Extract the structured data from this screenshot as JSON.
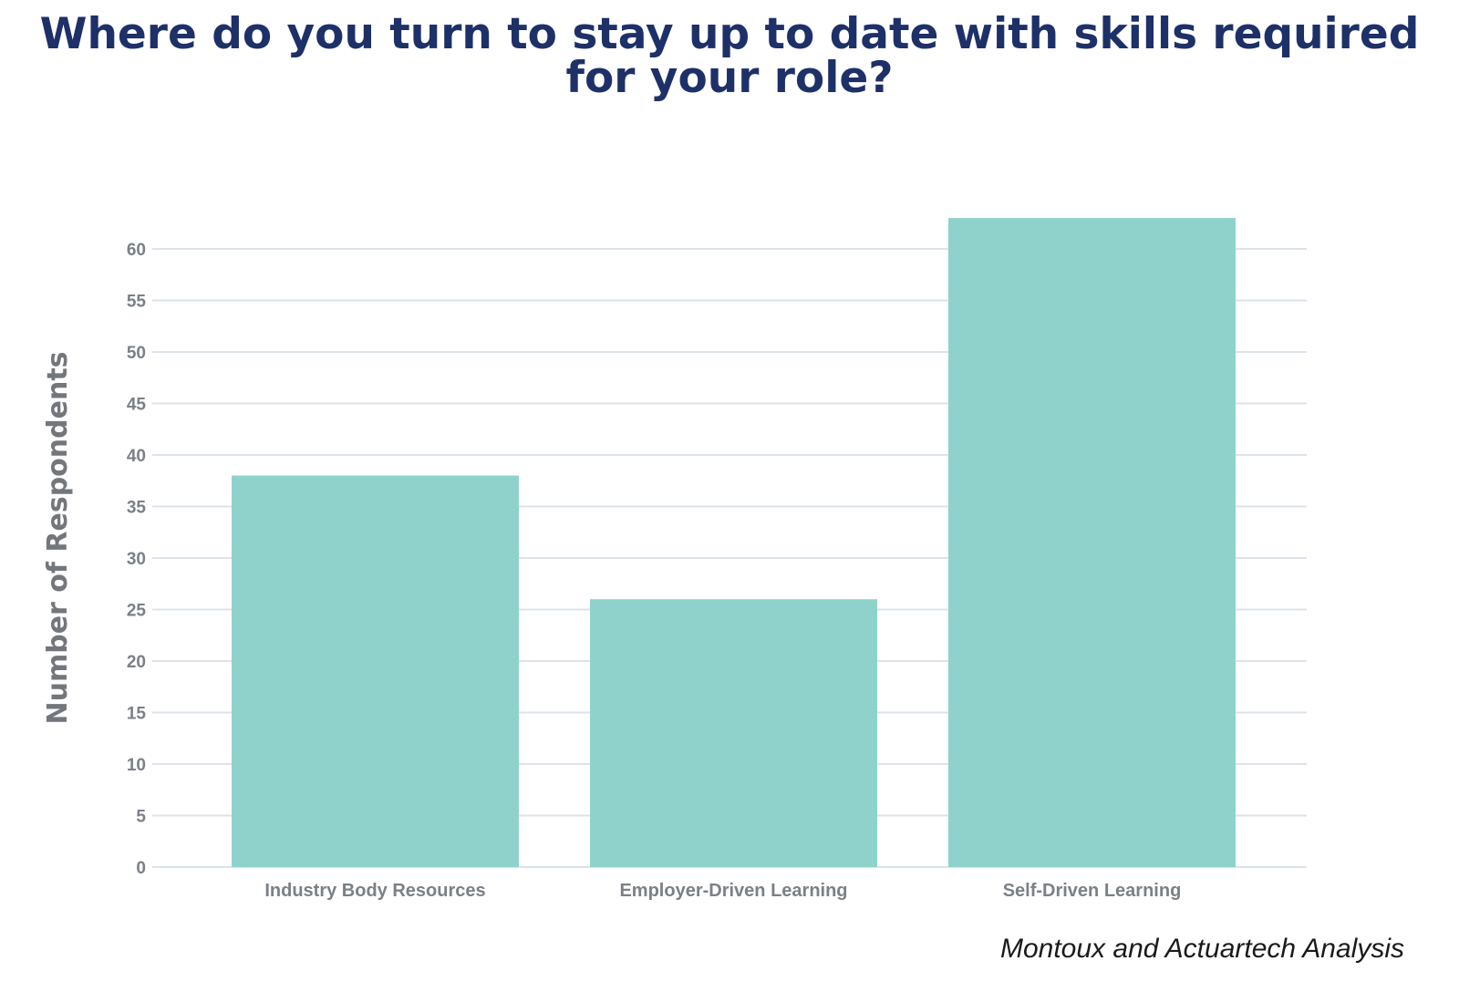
{
  "chart_data": {
    "type": "bar",
    "title": "Where do you turn to stay up to date with skills required for your role?",
    "ylabel": "Number of Respondents",
    "xlabel": "",
    "categories": [
      "Industry Body Resources",
      "Employer-Driven Learning",
      "Self-Driven Learning"
    ],
    "values": [
      38,
      26,
      63
    ],
    "ylim": [
      0,
      60
    ],
    "yticks": [
      0,
      5,
      10,
      15,
      20,
      25,
      30,
      35,
      40,
      45,
      50,
      55,
      60
    ],
    "grid": true,
    "bar_color": "#8fd2cc"
  },
  "source": "Montoux and Actuartech Analysis"
}
